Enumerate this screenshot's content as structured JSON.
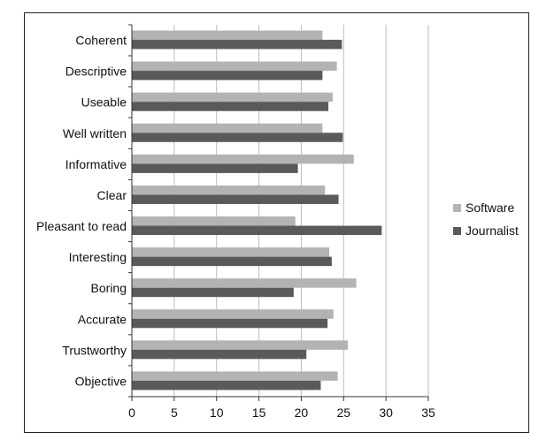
{
  "chart_data": {
    "type": "bar",
    "orientation": "horizontal",
    "categories": [
      "Coherent",
      "Descriptive",
      "Useable",
      "Well written",
      "Informative",
      "Clear",
      "Pleasant to read",
      "Interesting",
      "Boring",
      "Accurate",
      "Trustworthy",
      "Objective"
    ],
    "series": [
      {
        "name": "Software",
        "color": "#b3b3b3",
        "values": [
          22.5,
          24.2,
          23.7,
          22.5,
          26.2,
          22.8,
          19.3,
          23.3,
          26.5,
          23.8,
          25.5,
          24.3
        ]
      },
      {
        "name": "Journalist",
        "color": "#5a5a5a",
        "values": [
          24.8,
          22.5,
          23.2,
          24.9,
          19.6,
          24.4,
          29.5,
          23.6,
          19.1,
          23.1,
          20.6,
          22.3
        ]
      }
    ],
    "xlim": [
      0,
      35
    ],
    "xticks": [
      "0",
      "5",
      "10",
      "15",
      "20",
      "25",
      "30",
      "35"
    ],
    "grid": true,
    "legend_position": "right"
  }
}
